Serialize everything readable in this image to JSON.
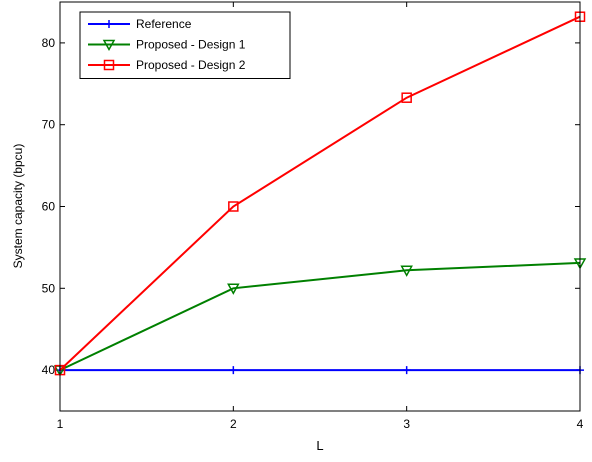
{
  "chart_data": {
    "type": "line",
    "title": "",
    "xlabel": "L",
    "ylabel": "System capacity (bpcu)",
    "xlim": [
      1,
      4
    ],
    "ylim": [
      35,
      85
    ],
    "x_ticks": [
      1,
      2,
      3,
      4
    ],
    "y_ticks": [
      40,
      50,
      60,
      70,
      80
    ],
    "grid": false,
    "legend_position": "top-left",
    "x": [
      1,
      2,
      3,
      4
    ],
    "series": [
      {
        "name": "Reference",
        "values": [
          40,
          40,
          40,
          40
        ],
        "color": "#0000ff",
        "marker": "plus"
      },
      {
        "name": "Proposed - Design 1",
        "values": [
          40,
          50,
          52.2,
          53.1
        ],
        "color": "#008000",
        "marker": "triangle-down"
      },
      {
        "name": "Proposed - Design 2",
        "values": [
          40,
          60,
          73.3,
          83.2
        ],
        "color": "#ff0000",
        "marker": "square"
      }
    ]
  }
}
